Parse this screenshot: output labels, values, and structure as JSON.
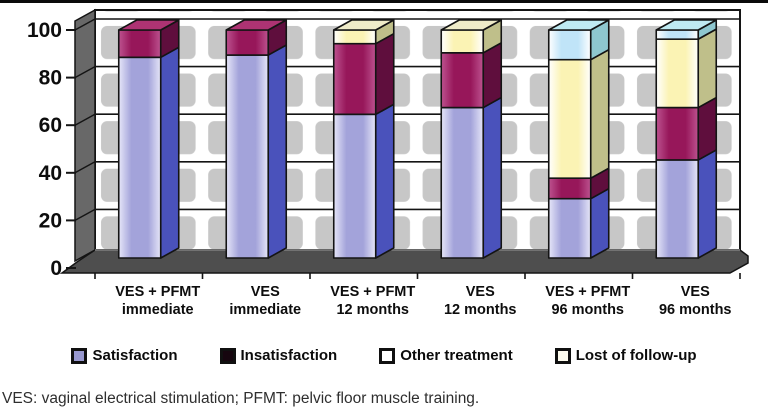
{
  "figure": {
    "caption": "VES: vaginal electrical stimulation; PFMT: pelvic floor muscle training."
  },
  "chart_data": {
    "type": "bar",
    "stacked": true,
    "projection": "3d",
    "title": "",
    "xlabel": "",
    "ylabel": "",
    "ylim": [
      0,
      100
    ],
    "yticks": [
      0,
      20,
      40,
      60,
      80,
      100
    ],
    "grid": "checkered gray wall with horizontal black lines every 20",
    "legend_position": "bottom",
    "categories": [
      {
        "line1": "VES + PFMT",
        "line2": "immediate"
      },
      {
        "line1": "VES",
        "line2": "immediate"
      },
      {
        "line1": "VES + PFMT",
        "line2": "12 months"
      },
      {
        "line1": "VES",
        "line2": "12 months"
      },
      {
        "line1": "VES + PFMT",
        "line2": "96 months"
      },
      {
        "line1": "VES",
        "line2": "96 months"
      }
    ],
    "series": [
      {
        "name": "Satisfaction",
        "values": [
          88,
          89,
          63,
          66,
          26,
          43
        ],
        "front": "#a3a3da",
        "edge": "#e6e6f8",
        "side": "#4a52bb",
        "top": "#b9b9e8",
        "swatch": "#9898cf"
      },
      {
        "name": "Insatisfaction",
        "values": [
          12,
          11,
          31,
          24,
          9,
          23
        ],
        "front": "#97175a",
        "edge": "#bd5390",
        "side": "#5f0e3d",
        "top": "#ad3373",
        "swatch": "#16060f"
      },
      {
        "name": "Other treatment",
        "values": [
          0,
          0,
          6,
          10,
          52,
          30
        ],
        "front": "#fbf3b4",
        "edge": "#ffffff",
        "side": "#bfbf8a",
        "top": "#efecc9",
        "swatch": "#ffffff"
      },
      {
        "name": "Lost of follow-up",
        "values": [
          0,
          0,
          0,
          0,
          13,
          4
        ],
        "front": "#c0e4f8",
        "edge": "#ffffff",
        "side": "#8ec7cf",
        "top": "#bfeaf2",
        "swatch": "#fdfbee"
      }
    ],
    "colors": {
      "wall_square": "#c7c7c7",
      "wall_gap": "#ffffff",
      "side_wall": "#686868",
      "floor": "#4e4e4e",
      "axis_text": "#0d0d0d",
      "outline": "#141414"
    }
  }
}
